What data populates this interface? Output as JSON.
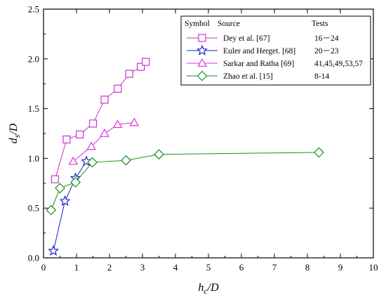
{
  "chart_data": {
    "type": "line",
    "xlabel": "h_c/D",
    "ylabel": "d_s/D",
    "xlim": [
      0,
      10
    ],
    "ylim": [
      0,
      2.5
    ],
    "xticks": [
      0,
      1,
      2,
      3,
      4,
      5,
      6,
      7,
      8,
      9,
      10
    ],
    "yticks": [
      0.0,
      0.5,
      1.0,
      1.5,
      2.0,
      2.5
    ],
    "grid": false,
    "legend_position": "top-right",
    "legend_headers": [
      "Symbol",
      "Source",
      "Tests"
    ],
    "series": [
      {
        "name": "Dey et al. [67]",
        "tests": "16－24",
        "marker": "square",
        "color": "#CC33CC",
        "x": [
          0.35,
          0.7,
          1.1,
          1.5,
          1.85,
          2.25,
          2.6,
          2.95,
          3.1
        ],
        "y": [
          0.79,
          1.19,
          1.24,
          1.35,
          1.59,
          1.7,
          1.85,
          1.92,
          1.97
        ]
      },
      {
        "name": "Euler and Herget. [68]",
        "tests": "20－23",
        "marker": "star",
        "color": "#2020CC",
        "x": [
          0.3,
          0.65,
          0.97,
          1.3
        ],
        "y": [
          0.07,
          0.57,
          0.8,
          0.97
        ]
      },
      {
        "name": "Sarkar and Ratha [69]",
        "tests": "41,45,49,53,57",
        "marker": "triangle",
        "color": "#DD33DD",
        "x": [
          0.9,
          1.45,
          1.85,
          2.25,
          2.75
        ],
        "y": [
          0.97,
          1.12,
          1.25,
          1.34,
          1.36
        ]
      },
      {
        "name": "Zhao et al. [15]",
        "tests": "8-14",
        "marker": "diamond",
        "color": "#1A8C1A",
        "x": [
          0.23,
          0.5,
          0.97,
          1.48,
          2.5,
          3.5,
          8.35
        ],
        "y": [
          0.48,
          0.7,
          0.76,
          0.96,
          0.98,
          1.04,
          1.06
        ]
      }
    ]
  }
}
